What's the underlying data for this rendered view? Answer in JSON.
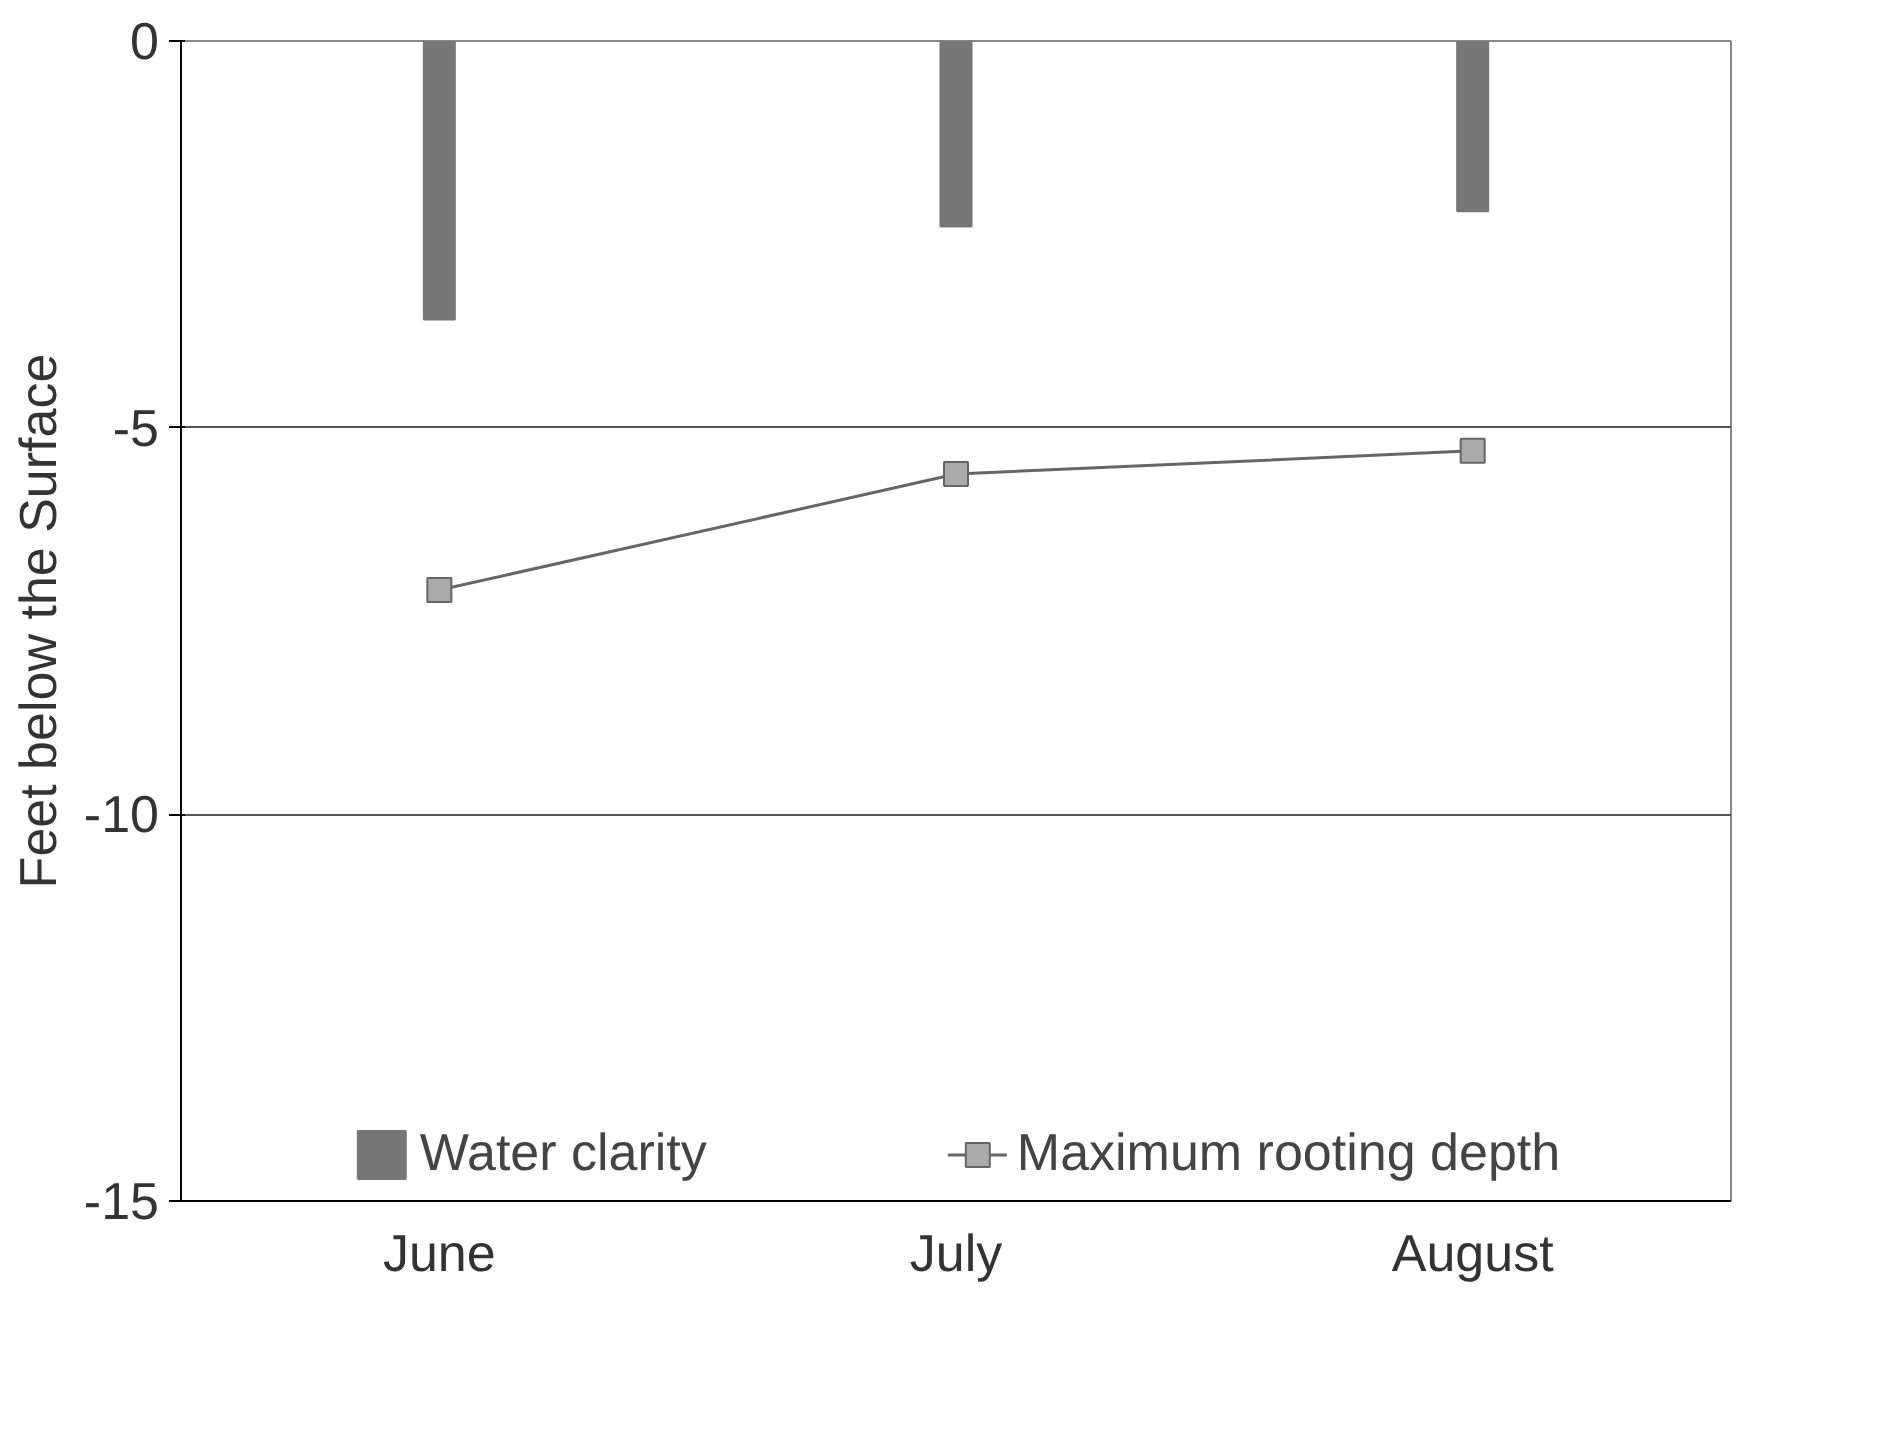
{
  "chart_data": {
    "type": "bar",
    "ylabel": "Feet below the Surface",
    "categories": [
      "June",
      "July",
      "August"
    ],
    "series": [
      {
        "name": "Water clarity",
        "color": "#777777",
        "values": [
          -3.6,
          -2.4,
          -2.2
        ]
      },
      {
        "name": "Maximum rooting depth",
        "type": "line",
        "color": "#666666",
        "marker": "square",
        "line_style": "solid",
        "values": [
          -7.1,
          -5.6,
          -5.3
        ]
      }
    ],
    "ylim": [
      -15,
      0
    ],
    "yticks": [
      -15,
      -10,
      -5,
      0
    ],
    "grid": "y",
    "legend": "bottom"
  }
}
